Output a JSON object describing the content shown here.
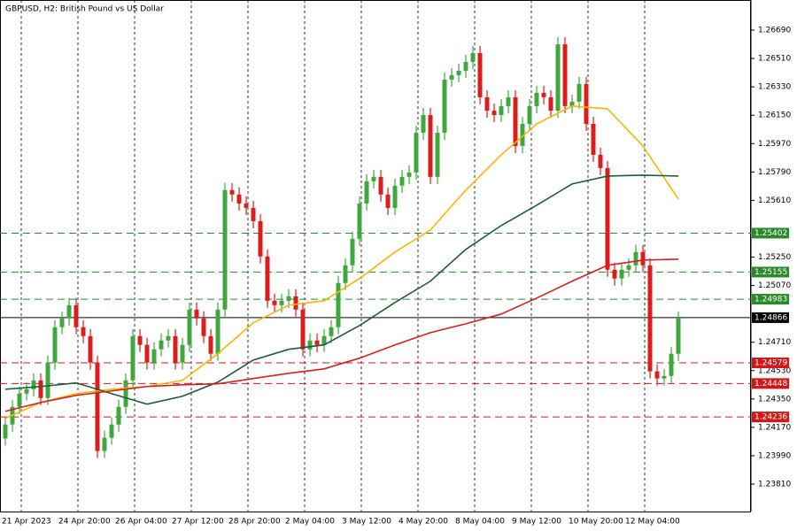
{
  "chart_data": {
    "type": "candlestick",
    "title": "GBPUSD, H2:  British Pound vs US Dollar",
    "categories": [
      "21 Apr 2023",
      null,
      null,
      null,
      null,
      null,
      null,
      null,
      "24 Apr 20:00",
      null,
      null,
      null,
      null,
      null,
      null,
      null,
      "26 Apr 04:00",
      null,
      null,
      null,
      null,
      null,
      null,
      null,
      "27 Apr 12:00",
      null,
      null,
      null,
      null,
      null,
      null,
      null,
      "28 Apr 20:00",
      null,
      null,
      null,
      null,
      null,
      null,
      null,
      "2 May 04:00",
      null,
      null,
      null,
      null,
      null,
      null,
      null,
      "3 May 12:00",
      null,
      null,
      null,
      null,
      null,
      null,
      null,
      "4 May 20:00",
      null,
      null,
      null,
      null,
      null,
      null,
      null,
      "8 May 04:00",
      null,
      null,
      null,
      null,
      null,
      null,
      null,
      "9 May 12:00",
      null,
      null,
      null,
      null,
      null,
      null,
      null,
      "10 May 20:00",
      null,
      null,
      null,
      null,
      null,
      null,
      null,
      "12 May 04:00",
      null,
      null,
      null,
      null,
      null,
      null,
      null
    ],
    "open": [
      1.241,
      1.24188,
      1.243,
      1.24384,
      1.24412,
      1.24468,
      1.24356,
      1.24581,
      1.24805,
      1.24861,
      1.24945,
      1.24805,
      1.24749,
      1.24581,
      1.2402,
      1.24104,
      1.24188,
      1.243,
      1.24468,
      1.24749,
      1.24693,
      1.24581,
      1.24665,
      1.24721,
      1.24749,
      1.24581,
      1.24693,
      1.24917,
      1.24861,
      1.24749,
      1.24637,
      1.24917,
      1.25675,
      1.25647,
      1.2559,
      1.25562,
      1.25478,
      1.25254,
      1.24973,
      1.24945,
      1.24973,
      1.25001,
      1.24917,
      1.24665,
      1.24721,
      1.24693,
      1.24749,
      1.24805,
      1.25086,
      1.25198,
      1.25366,
      1.2559,
      1.25731,
      1.25759,
      1.25647,
      1.25562,
      1.25703,
      1.25759,
      1.25787,
      1.26039,
      1.26151,
      1.25759,
      1.26039,
      1.26376,
      1.26404,
      1.26432,
      1.26488,
      1.26544,
      1.26264,
      1.26179,
      1.26151,
      1.26208,
      1.26264,
      1.25955,
      1.26095,
      1.26208,
      1.26292,
      1.26264,
      1.26179,
      1.266,
      1.26208,
      1.26236,
      1.26348,
      1.26095,
      1.25899,
      1.25815,
      1.2517,
      1.25114,
      1.2517,
      1.25198,
      1.25282,
      1.25198,
      1.24525,
      1.2448,
      1.24496,
      1.24637
    ],
    "high": [
      1.24233,
      1.24345,
      1.24429,
      1.24457,
      1.24513,
      1.24513,
      1.24626,
      1.2485,
      1.24906,
      1.2499,
      1.2499,
      1.2485,
      1.24794,
      1.24626,
      1.24149,
      1.24233,
      1.24345,
      1.24513,
      1.24794,
      1.24794,
      1.24738,
      1.2471,
      1.24766,
      1.24794,
      1.24794,
      1.24738,
      1.24962,
      1.24962,
      1.24906,
      1.24794,
      1.24962,
      1.2572,
      1.2572,
      1.25692,
      1.25635,
      1.25607,
      1.25523,
      1.25299,
      1.25018,
      1.25018,
      1.25046,
      1.25046,
      1.24962,
      1.24766,
      1.24766,
      1.24794,
      1.2485,
      1.25131,
      1.25243,
      1.25411,
      1.25635,
      1.25776,
      1.25804,
      1.25804,
      1.25692,
      1.25748,
      1.25804,
      1.25832,
      1.26084,
      1.26196,
      1.26196,
      1.26084,
      1.26421,
      1.26449,
      1.26477,
      1.26533,
      1.26589,
      1.26589,
      1.26309,
      1.26224,
      1.26253,
      1.26309,
      1.26309,
      1.2614,
      1.26253,
      1.26337,
      1.26337,
      1.26309,
      1.26645,
      1.26645,
      1.26281,
      1.26393,
      1.26393,
      1.2614,
      1.25944,
      1.2586,
      1.25215,
      1.25215,
      1.25243,
      1.25327,
      1.25327,
      1.25243,
      1.2457,
      1.24541,
      1.24682,
      1.24906
    ],
    "low": [
      1.24055,
      1.24143,
      1.24255,
      1.24339,
      1.24367,
      1.24311,
      1.24311,
      1.24536,
      1.2476,
      1.24816,
      1.2476,
      1.24704,
      1.24536,
      1.23975,
      1.23975,
      1.24059,
      1.24143,
      1.24255,
      1.24423,
      1.24648,
      1.24536,
      1.24536,
      1.2462,
      1.24676,
      1.24536,
      1.24536,
      1.24648,
      1.24816,
      1.24704,
      1.24592,
      1.24592,
      1.24872,
      1.25602,
      1.25545,
      1.25517,
      1.25433,
      1.25209,
      1.24928,
      1.249,
      1.249,
      1.24928,
      1.24872,
      1.2462,
      1.2462,
      1.24648,
      1.24648,
      1.24704,
      1.2476,
      1.25041,
      1.25153,
      1.25321,
      1.25545,
      1.25686,
      1.25602,
      1.25517,
      1.25517,
      1.25658,
      1.25714,
      1.25742,
      1.25994,
      1.25714,
      1.25714,
      1.25994,
      1.26331,
      1.26359,
      1.26387,
      1.26443,
      1.26219,
      1.26134,
      1.26106,
      1.26106,
      1.26163,
      1.2591,
      1.2591,
      1.2605,
      1.26163,
      1.26219,
      1.26134,
      1.26134,
      1.26163,
      1.26163,
      1.26191,
      1.2605,
      1.25854,
      1.2577,
      1.25125,
      1.25069,
      1.25069,
      1.25125,
      1.25153,
      1.25153,
      1.2448,
      1.24435,
      1.24435,
      1.24451,
      1.24592
    ],
    "close": [
      1.24188,
      1.243,
      1.24384,
      1.24412,
      1.24468,
      1.24356,
      1.24581,
      1.24805,
      1.24861,
      1.24945,
      1.24805,
      1.24749,
      1.24581,
      1.2402,
      1.24104,
      1.24188,
      1.243,
      1.24468,
      1.24749,
      1.24693,
      1.24581,
      1.24665,
      1.24721,
      1.24749,
      1.24581,
      1.24693,
      1.24917,
      1.24861,
      1.24749,
      1.24637,
      1.24917,
      1.25675,
      1.25647,
      1.2559,
      1.25562,
      1.25478,
      1.25254,
      1.24973,
      1.24945,
      1.24973,
      1.25001,
      1.24917,
      1.24665,
      1.24721,
      1.24693,
      1.24749,
      1.24805,
      1.25086,
      1.25198,
      1.25366,
      1.2559,
      1.25731,
      1.25759,
      1.25647,
      1.25562,
      1.25703,
      1.25759,
      1.25787,
      1.26039,
      1.26151,
      1.25759,
      1.26039,
      1.26376,
      1.26404,
      1.26432,
      1.26488,
      1.26544,
      1.26264,
      1.26179,
      1.26151,
      1.26208,
      1.26264,
      1.25955,
      1.26095,
      1.26208,
      1.26292,
      1.26264,
      1.26179,
      1.266,
      1.26208,
      1.26236,
      1.26348,
      1.26095,
      1.25899,
      1.25815,
      1.2517,
      1.25114,
      1.2517,
      1.25198,
      1.25282,
      1.25198,
      1.24525,
      1.2448,
      1.24496,
      1.24637,
      1.24861
    ],
    "up_color": "#3ea83e",
    "down_color": "#dd1c1c",
    "series": [
      {
        "color": "#f2b705",
        "x": [
          0,
          5,
          10,
          15,
          20,
          25,
          30,
          35,
          40,
          45,
          50,
          55,
          60,
          65,
          70,
          75,
          80,
          85,
          90,
          95
        ],
        "values": [
          1.24227,
          1.24328,
          1.24384,
          1.24412,
          1.24429,
          1.24468,
          1.24637,
          1.24833,
          1.24945,
          1.24973,
          1.25114,
          1.25282,
          1.25422,
          1.25675,
          1.25899,
          1.26095,
          1.26208,
          1.26191,
          1.25955,
          1.25618
        ]
      },
      {
        "color": "#1e5a3c",
        "x": [
          0,
          5,
          10,
          15,
          20,
          25,
          30,
          35,
          40,
          45,
          50,
          55,
          60,
          65,
          70,
          75,
          80,
          85,
          90,
          95
        ],
        "values": [
          1.24412,
          1.24429,
          1.24452,
          1.24384,
          1.24317,
          1.24367,
          1.24457,
          1.24597,
          1.24665,
          1.24693,
          1.24816,
          1.24962,
          1.25097,
          1.25299,
          1.2545,
          1.25579,
          1.25714,
          1.25764,
          1.2577,
          1.25764
        ]
      },
      {
        "color": "#d42020",
        "x": [
          0,
          5,
          10,
          15,
          20,
          25,
          30,
          35,
          40,
          45,
          50,
          55,
          60,
          65,
          70,
          75,
          80,
          85,
          90,
          95
        ],
        "values": [
          1.24272,
          1.24328,
          1.24373,
          1.24401,
          1.24429,
          1.2444,
          1.24446,
          1.2448,
          1.24513,
          1.24541,
          1.24609,
          1.24693,
          1.24771,
          1.24827,
          1.24889,
          1.2499,
          1.25097,
          1.25198,
          1.25231,
          1.25237
        ]
      }
    ],
    "levels": [
      {
        "value": 1.25402,
        "color": "#2a8a2a",
        "dashed": true
      },
      {
        "value": 1.25155,
        "color": "#2a8a2a",
        "dashed": true
      },
      {
        "value": 1.24983,
        "color": "#2a8a2a",
        "dashed": true
      },
      {
        "value": 1.24866,
        "color": "#000000",
        "dashed": false
      },
      {
        "value": 1.24579,
        "color": "#d01818",
        "dashed": true
      },
      {
        "value": 1.24448,
        "color": "#d01818",
        "dashed": true
      },
      {
        "value": 1.24236,
        "color": "#d01818",
        "dashed": true
      }
    ],
    "ylim": [
      1.23636,
      1.26881
    ],
    "yticks": [
      {
        "value": 1.2381,
        "label": "1.23810"
      },
      {
        "value": 1.2399,
        "label": "1.23990"
      },
      {
        "value": 1.2417,
        "label": "1.24170"
      },
      {
        "value": 1.2435,
        "label": "1.24350"
      },
      {
        "value": 1.2453,
        "label": "1.24530"
      },
      {
        "value": 1.2471,
        "label": "1.24710"
      },
      {
        "value": 1.2507,
        "label": "1.25070"
      },
      {
        "value": 1.2525,
        "label": "1.25250"
      },
      {
        "value": 1.2561,
        "label": "1.25610"
      },
      {
        "value": 1.2579,
        "label": "1.25790"
      },
      {
        "value": 1.2597,
        "label": "1.25970"
      },
      {
        "value": 1.2615,
        "label": "1.26150"
      },
      {
        "value": 1.2633,
        "label": "1.26330"
      },
      {
        "value": 1.2651,
        "label": "1.26510"
      },
      {
        "value": 1.2669,
        "label": "1.26690"
      }
    ],
    "grid": true
  }
}
